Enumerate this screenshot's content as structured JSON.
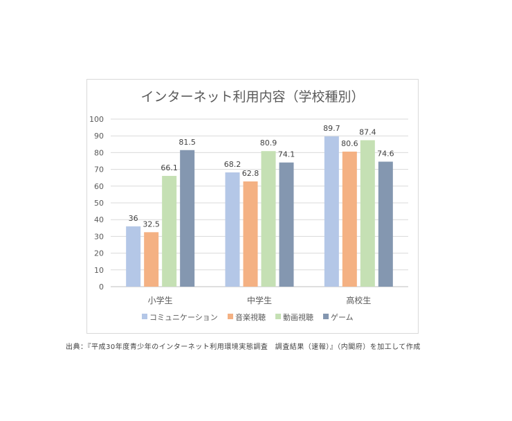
{
  "source_note": "出典：『平成30年度青少年のインターネット利用環境実態調査　調査結果（速報）』（内閣府）を加工して作成",
  "chart_data": {
    "type": "bar",
    "title": "インターネット利用内容（学校種別）",
    "categories": [
      "小学生",
      "中学生",
      "高校生"
    ],
    "series": [
      {
        "name": "コミュニケーション",
        "color": "#b4c7e7",
        "values": [
          36,
          68.2,
          89.7
        ]
      },
      {
        "name": "音楽視聴",
        "color": "#f4b183",
        "values": [
          32.5,
          62.8,
          80.6
        ]
      },
      {
        "name": "動画視聴",
        "color": "#c5e0b4",
        "values": [
          66.1,
          80.9,
          87.4
        ]
      },
      {
        "name": "ゲーム",
        "color": "#8497b0",
        "values": [
          81.5,
          74.1,
          74.6
        ]
      }
    ],
    "y_ticks": [
      "0",
      "10",
      "20",
      "30",
      "40",
      "50",
      "60",
      "70",
      "80",
      "90",
      "100"
    ],
    "ylim": [
      0,
      100
    ],
    "grid": true,
    "legend_position": "bottom"
  }
}
